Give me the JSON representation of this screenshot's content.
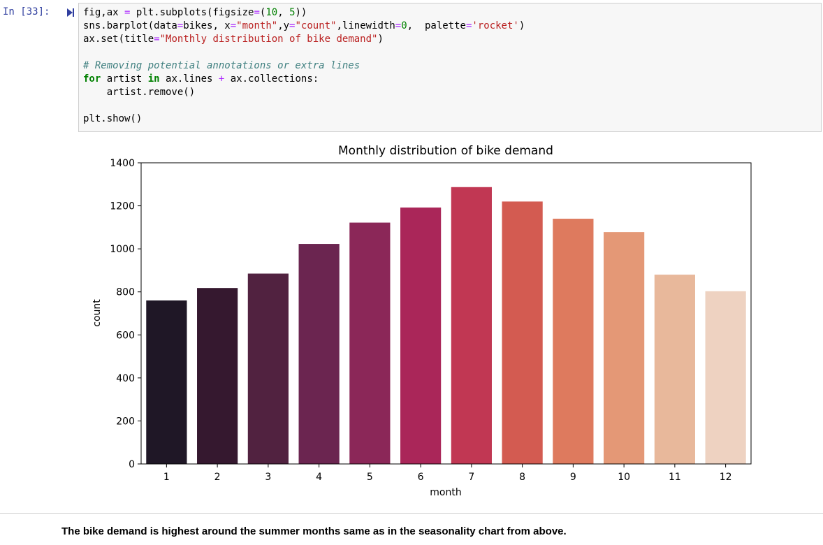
{
  "cell": {
    "prompt": "In [33]:",
    "code": [
      [
        {
          "t": "fig,ax "
        },
        {
          "t": "=",
          "c": "op"
        },
        {
          "t": " plt.subplots(figsize"
        },
        {
          "t": "=",
          "c": "op"
        },
        {
          "t": "("
        },
        {
          "t": "10",
          "c": "num"
        },
        {
          "t": ", "
        },
        {
          "t": "5",
          "c": "num"
        },
        {
          "t": "))"
        }
      ],
      [
        {
          "t": "sns.barplot(data"
        },
        {
          "t": "=",
          "c": "op"
        },
        {
          "t": "bikes, x"
        },
        {
          "t": "=",
          "c": "op"
        },
        {
          "t": "\"month\"",
          "c": "str"
        },
        {
          "t": ",y"
        },
        {
          "t": "=",
          "c": "op"
        },
        {
          "t": "\"count\"",
          "c": "str"
        },
        {
          "t": ",linewidth"
        },
        {
          "t": "=",
          "c": "op"
        },
        {
          "t": "0",
          "c": "num"
        },
        {
          "t": ",  palette"
        },
        {
          "t": "=",
          "c": "op"
        },
        {
          "t": "'rocket'",
          "c": "str"
        },
        {
          "t": ")"
        }
      ],
      [
        {
          "t": "ax.set(title"
        },
        {
          "t": "=",
          "c": "op"
        },
        {
          "t": "\"Monthly distribution of bike demand\"",
          "c": "str"
        },
        {
          "t": ")"
        }
      ],
      [],
      [
        {
          "t": "# Removing potential annotations or extra lines",
          "c": "cm"
        }
      ],
      [
        {
          "t": "for",
          "c": "kw"
        },
        {
          "t": " artist "
        },
        {
          "t": "in",
          "c": "kw"
        },
        {
          "t": " ax.lines "
        },
        {
          "t": "+",
          "c": "op"
        },
        {
          "t": " ax.collections:"
        }
      ],
      [
        {
          "t": "    artist.remove()"
        }
      ],
      [],
      [
        {
          "t": "plt.show()"
        }
      ]
    ]
  },
  "chart_data": {
    "type": "bar",
    "title": "Monthly distribution of bike demand",
    "xlabel": "month",
    "ylabel": "count",
    "categories": [
      "1",
      "2",
      "3",
      "4",
      "5",
      "6",
      "7",
      "8",
      "9",
      "10",
      "11",
      "12"
    ],
    "values": [
      760,
      818,
      885,
      1023,
      1122,
      1192,
      1287,
      1220,
      1140,
      1078,
      880,
      803
    ],
    "ylim": [
      0,
      1400
    ],
    "yticks": [
      0,
      200,
      400,
      600,
      800,
      1000,
      1200,
      1400
    ],
    "colors": [
      "#1f1726",
      "#35182f",
      "#512240",
      "#6b2550",
      "#8b2758",
      "#aa2659",
      "#c13753",
      "#d35b51",
      "#de7a5e",
      "#e49876",
      "#e8b89b",
      "#eed2c1"
    ],
    "grid": false
  },
  "markdown": {
    "text": "The bike demand is highest around the summer months same as in the seasonality chart from above."
  }
}
